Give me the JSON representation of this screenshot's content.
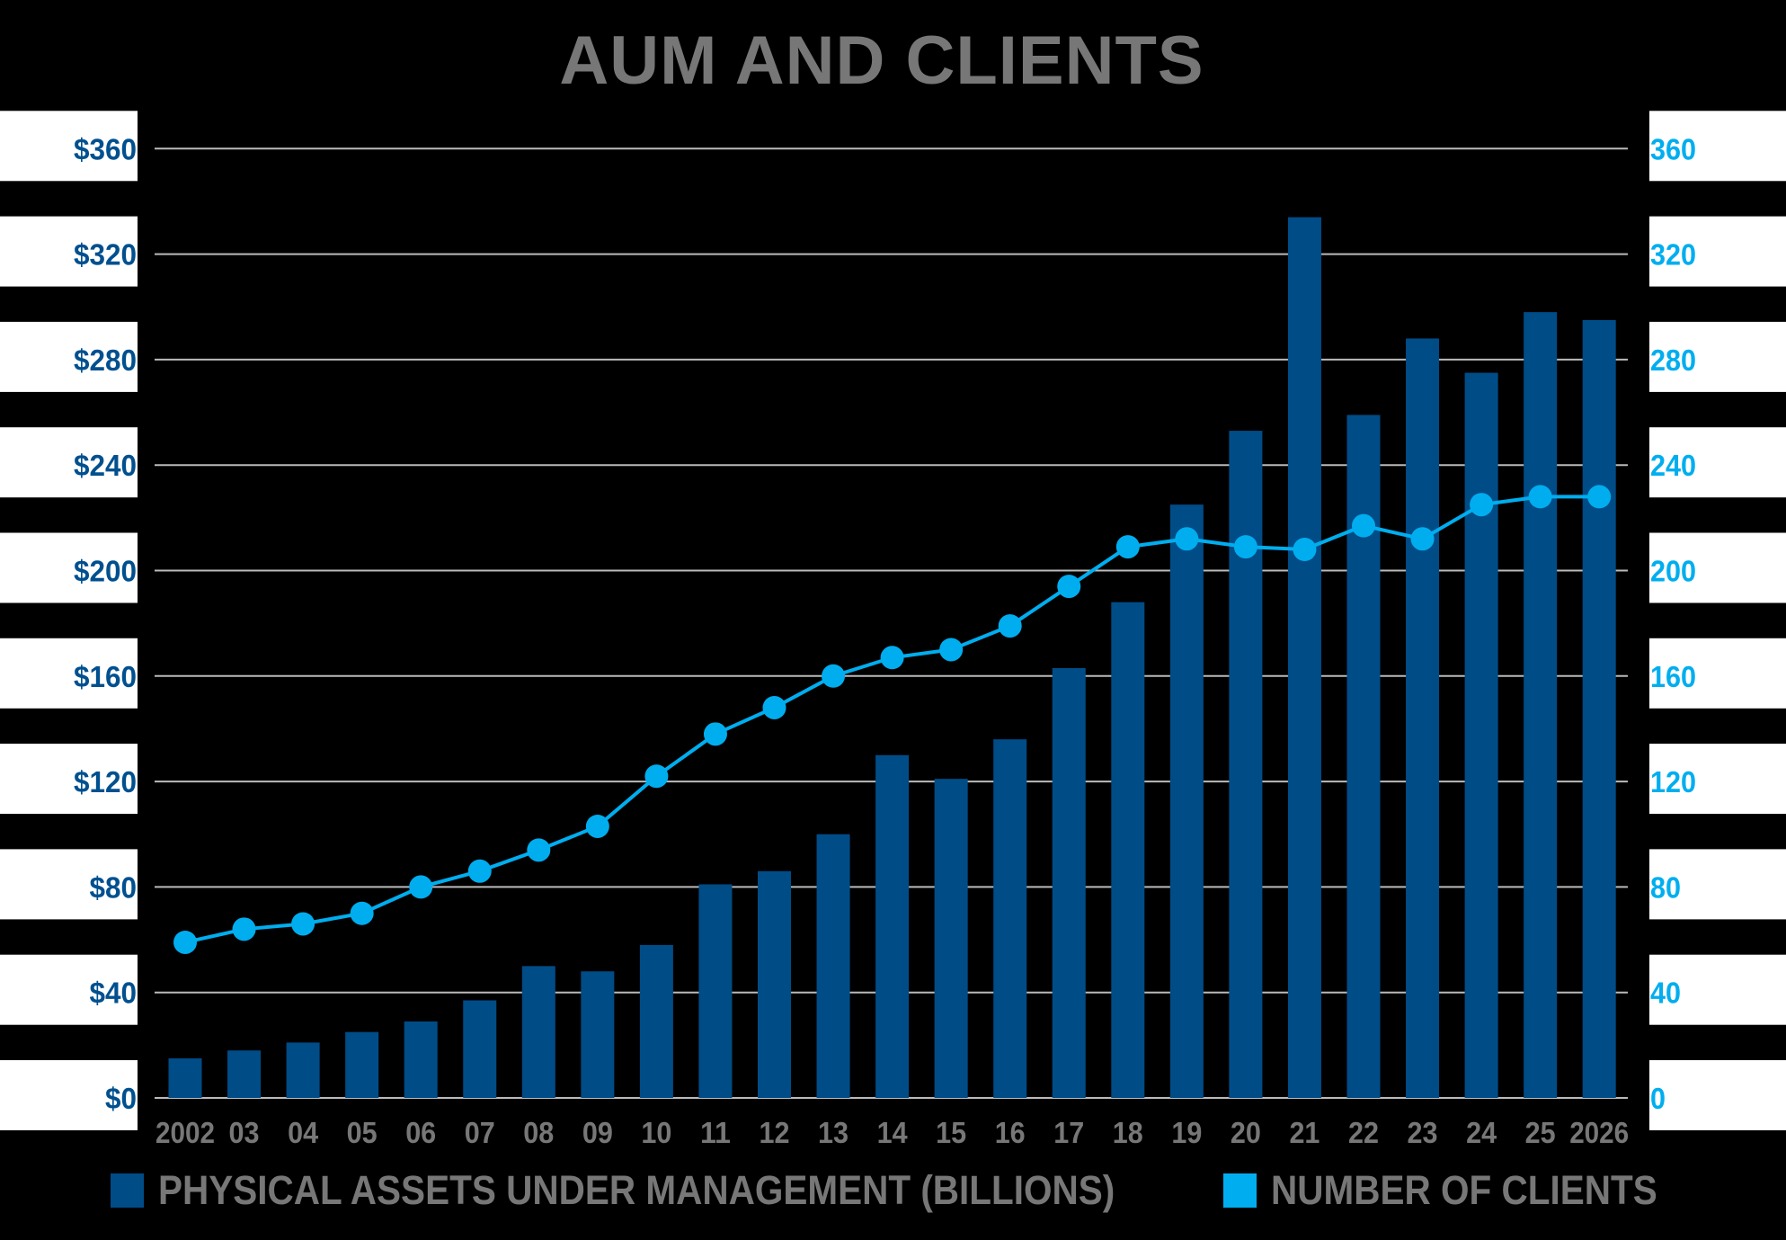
{
  "title": "AUM AND CLIENTS",
  "colors": {
    "background": "#000000",
    "bars": "#004C87",
    "line": "#00AEEF",
    "left_axis_text": "#00508F",
    "right_axis_text": "#00AEEF",
    "gridline": "#BBBBBB",
    "category_text": "#777777",
    "label_box": "#FFFFFF"
  },
  "legend": [
    {
      "label": "PHYSICAL ASSETS UNDER MANAGEMENT (BILLIONS)",
      "color": "#004C87"
    },
    {
      "label": "NUMBER OF CLIENTS",
      "color": "#00AEEF"
    }
  ],
  "chart_data": {
    "type": "bar",
    "title": "AUM AND CLIENTS",
    "xlabel": "",
    "ylabel": "Physical Assets Under Management (Billions)",
    "y2label": "Number of Clients",
    "categories": [
      "2002",
      "03",
      "04",
      "05",
      "06",
      "07",
      "08",
      "09",
      "10",
      "11",
      "12",
      "13",
      "14",
      "15",
      "16",
      "17",
      "18",
      "19",
      "20",
      "21",
      "22",
      "23",
      "24",
      "25",
      "2026"
    ],
    "series": [
      {
        "name": "PHYSICAL ASSETS UNDER MANAGEMENT (BILLIONS)",
        "type": "bar",
        "axis": "left",
        "values": [
          15,
          18,
          21,
          25,
          29,
          37,
          50,
          48,
          58,
          81,
          86,
          100,
          130,
          121,
          136,
          163,
          188,
          225,
          253,
          334,
          259,
          288,
          275,
          298,
          295
        ]
      },
      {
        "name": "NUMBER OF CLIENTS",
        "type": "line",
        "axis": "right",
        "values": [
          59,
          64,
          66,
          70,
          80,
          86,
          94,
          103,
          122,
          138,
          148,
          160,
          167,
          170,
          179,
          194,
          209,
          212,
          209,
          208,
          217,
          212,
          225,
          228,
          228
        ]
      }
    ],
    "ylim": [
      0,
      360
    ],
    "y2lim": [
      0,
      360
    ],
    "left_ticks": [
      "$0",
      "$40",
      "$80",
      "$120",
      "$160",
      "$200",
      "$240",
      "$280",
      "$320",
      "$360"
    ],
    "right_ticks": [
      "0",
      "40",
      "80",
      "120",
      "160",
      "200",
      "240",
      "280",
      "320",
      "360"
    ],
    "grid": true,
    "legend_position": "bottom"
  }
}
